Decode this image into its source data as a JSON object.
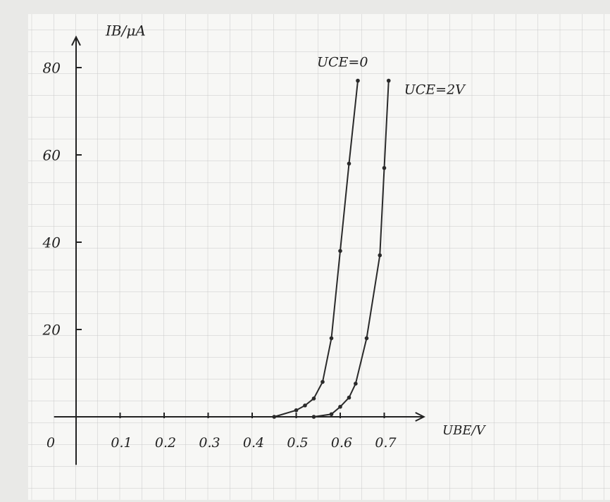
{
  "chart_data": {
    "type": "line",
    "x_label": "UBE/V",
    "y_label": "IB/μA",
    "series": [
      {
        "name": "UCE=0",
        "color": "#2a2a2a",
        "x": [
          0.45,
          0.5,
          0.52,
          0.54,
          0.56,
          0.58,
          0.6,
          0.62,
          0.64
        ],
        "values": [
          0,
          1.5,
          2.6,
          4.2,
          8,
          18,
          38,
          58,
          77
        ]
      },
      {
        "name": "UCE=2V",
        "color": "#2a2a2a",
        "x": [
          0.54,
          0.58,
          0.6,
          0.62,
          0.635,
          0.66,
          0.69,
          0.7,
          0.71
        ],
        "values": [
          0,
          0.6,
          2.3,
          4.4,
          7.6,
          18,
          37,
          57,
          77
        ]
      }
    ],
    "xlim": [
      -0.05,
      0.79
    ],
    "ylim": [
      -11,
      87
    ],
    "xticks": [
      0,
      0.1,
      0.2,
      0.3,
      0.4,
      0.5,
      0.6,
      0.7
    ],
    "yticks": [
      20,
      40,
      60,
      80
    ]
  }
}
